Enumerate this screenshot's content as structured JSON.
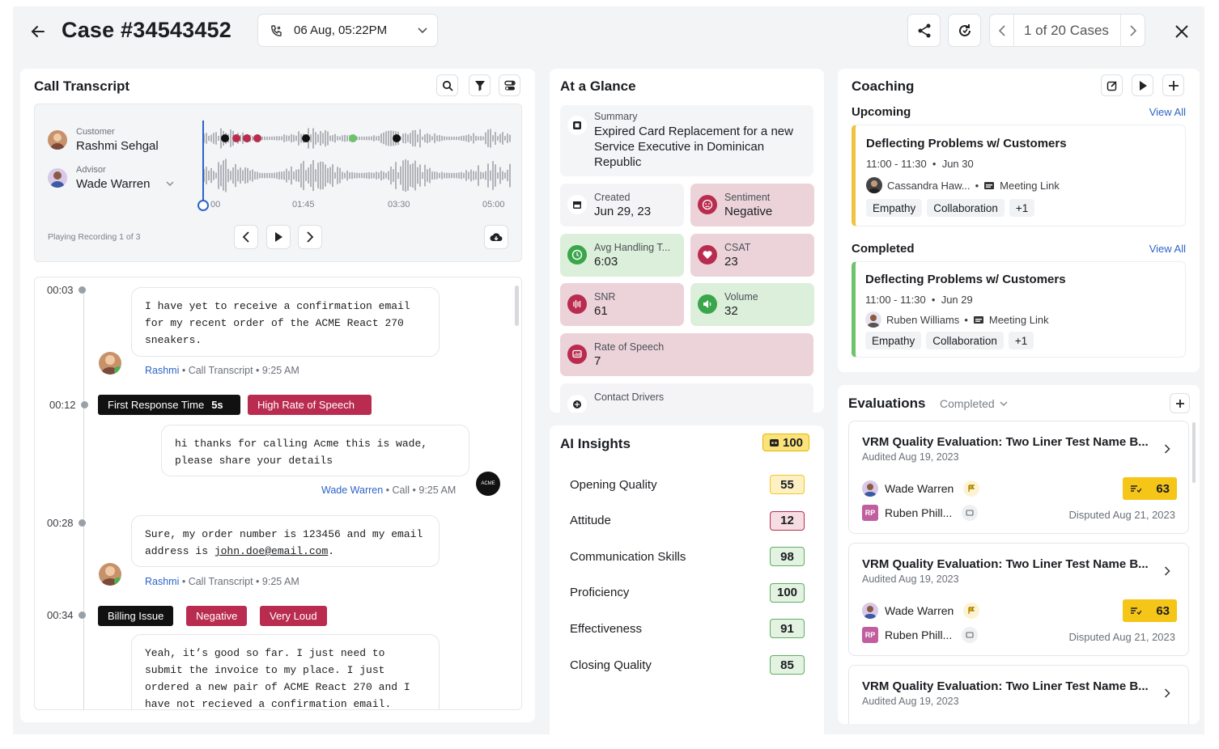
{
  "header": {
    "case_title": "Case #34543452",
    "call_date": "06 Aug, 05:22PM",
    "pager_text": "1 of 20 Cases"
  },
  "transcript": {
    "title": "Call Transcript",
    "customer_role": "Customer",
    "customer_name": "Rashmi Sehgal",
    "advisor_role": "Advisor",
    "advisor_name": "Wade Warren",
    "ticks": [
      "00",
      "01:45",
      "03:30",
      "05:00"
    ],
    "playing_label": "Playing Recording 1 of 3",
    "messages": [
      {
        "time": "00:03",
        "text": "I have yet to receive a confirmation email for my recent order of the ACME React 270 sneakers.",
        "author": "Rashmi",
        "meta": " • Call Transcript • 9:25 AM"
      },
      {
        "time": "00:12",
        "text": "hi thanks for calling Acme this is wade, please share your details",
        "author": "Wade Warren",
        "meta": " • Call • 9:25 AM"
      },
      {
        "time": "00:28",
        "text_before": "Sure, my order number is 123456 and my email address is ",
        "email": "john.doe@email.com",
        "text_after": ".",
        "author": "Rashmi",
        "meta": " • Call Transcript • 9:25 AM"
      },
      {
        "time": "00:34",
        "text": "Yeah, it’s good so far. I just need to submit the invoice to my place. I just ordered a new pair of ACME React 270 and I have not recieved a confirmation email."
      }
    ],
    "tags_1": {
      "label": "First Response Time",
      "value": "5s",
      "tag2": "High Rate of Speech"
    },
    "tags_2": [
      "Billing Issue",
      "Negative",
      "Very Loud"
    ]
  },
  "glance": {
    "title": "At a Glance",
    "summary_label": "Summary",
    "summary_text": "Expired Card Replacement for a new Service Executive in Dominican Republic",
    "tiles": [
      {
        "label": "Created",
        "value": "Jun 29, 23"
      },
      {
        "label": "Sentiment",
        "value": "Negative"
      },
      {
        "label": "Avg Handling T...",
        "value": "6:03"
      },
      {
        "label": "CSAT",
        "value": "23"
      },
      {
        "label": "SNR",
        "value": "61"
      },
      {
        "label": "Volume",
        "value": "32"
      },
      {
        "label": "Rate of Speech",
        "value": "7"
      }
    ],
    "contact_drivers_label": "Contact Drivers"
  },
  "ai": {
    "title": "AI Insights",
    "total": "100",
    "rows": [
      {
        "label": "Opening Quality",
        "score": "55"
      },
      {
        "label": "Attitude",
        "score": "12"
      },
      {
        "label": "Communication Skills",
        "score": "98"
      },
      {
        "label": "Proficiency",
        "score": "100"
      },
      {
        "label": "Effectiveness",
        "score": "91"
      },
      {
        "label": "Closing Quality",
        "score": "85"
      }
    ]
  },
  "coaching": {
    "title": "Coaching",
    "upcoming_label": "Upcoming",
    "completed_label": "Completed",
    "view_all": "View All",
    "upcoming": {
      "title": "Deflecting Problems w/ Customers",
      "time": "11:00 - 11:30",
      "date": "Jun 30",
      "person": "Cassandra Haw...",
      "link": "Meeting Link",
      "chips": [
        "Empathy",
        "Collaboration",
        "+1"
      ]
    },
    "completed": {
      "title": "Deflecting Problems w/ Customers",
      "time": "11:00 - 11:30",
      "date": "Jun 29",
      "person": "Ruben Williams",
      "link": "Meeting Link",
      "chips": [
        "Empathy",
        "Collaboration",
        "+1"
      ]
    }
  },
  "evaluations": {
    "title": "Evaluations",
    "filter": "Completed",
    "items": [
      {
        "title": "VRM Quality Evaluation: Two Liner Test Name B...",
        "audited": "Audited Aug 19, 2023",
        "agent": "Wade Warren",
        "reviewer": "Ruben Phill...",
        "reviewer_initials": "RP",
        "score": "63",
        "disputed": "Disputed Aug 21, 2023"
      },
      {
        "title": "VRM Quality Evaluation: Two Liner Test Name B...",
        "audited": "Audited Aug 19, 2023",
        "agent": "Wade Warren",
        "reviewer": "Ruben Phill...",
        "reviewer_initials": "RP",
        "score": "63",
        "disputed": "Disputed Aug 21, 2023"
      },
      {
        "title": "VRM Quality Evaluation: Two Liner Test Name B...",
        "audited": "Audited Aug 19, 2023"
      }
    ]
  },
  "colors": {
    "accent_blue": "#2d63c8",
    "tag_red": "#b92c4f",
    "tag_black": "#111",
    "coach_upcoming": "#f0c23e",
    "coach_completed": "#6cc36c",
    "score_yellow": "#f5c518"
  }
}
